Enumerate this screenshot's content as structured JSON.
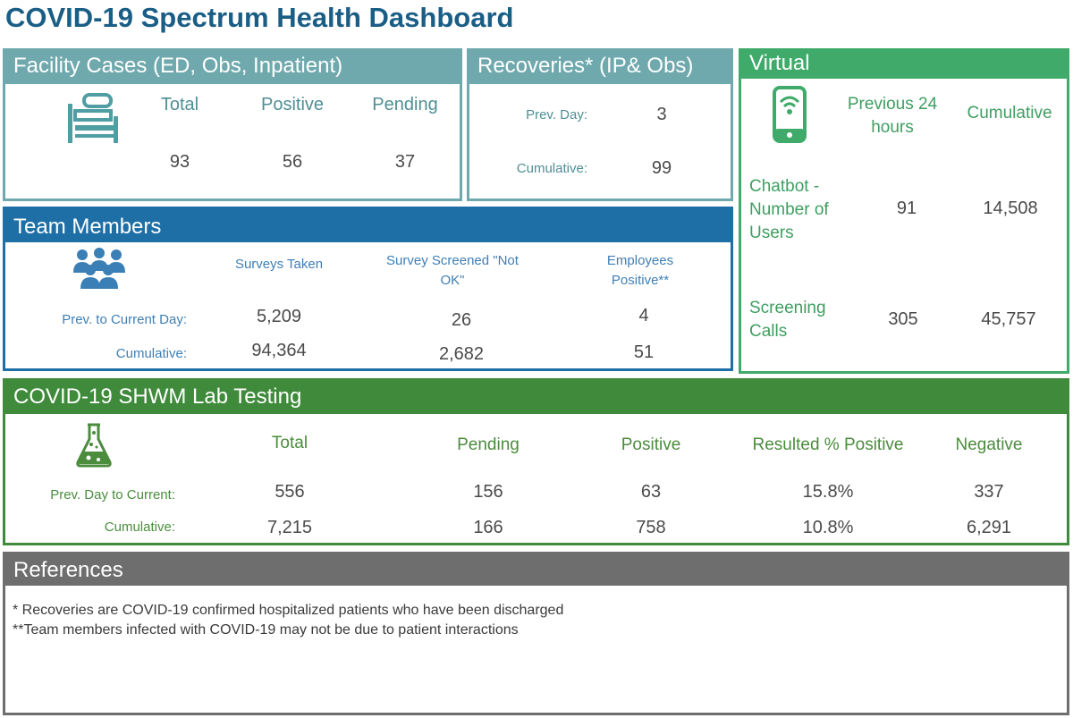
{
  "dashboard": {
    "title": "COVID-19 Spectrum Health Dashboard"
  },
  "facility": {
    "heading": "Facility Cases (ED, Obs, Inpatient)",
    "icon": "hospital-bed-icon",
    "columns": [
      "Total",
      "Positive",
      "Pending"
    ],
    "values": [
      "93",
      "56",
      "37"
    ]
  },
  "recoveries": {
    "heading": "Recoveries* (IP& Obs)",
    "rows": [
      {
        "label": "Prev. Day:",
        "value": "3"
      },
      {
        "label": "Cumulative:",
        "value": "99"
      }
    ]
  },
  "virtual": {
    "heading": "Virtual",
    "icon": "smartphone-signal-icon",
    "col_prev": "Previous 24 hours",
    "col_cumulative": "Cumulative",
    "rows": [
      {
        "label": "Chatbot - Number of Users",
        "prev": "91",
        "cumulative": "14,508"
      },
      {
        "label": "Screening Calls",
        "prev": "305",
        "cumulative": "45,757"
      }
    ]
  },
  "team": {
    "heading": "Team Members",
    "icon": "people-group-icon",
    "columns": [
      "Surveys Taken",
      "Survey Screened \"Not OK\"",
      "Employees Positive**"
    ],
    "rows": [
      {
        "label": "Prev. to Current Day:",
        "values": [
          "5,209",
          "26",
          "4"
        ]
      },
      {
        "label": "Cumulative:",
        "values": [
          "94,364",
          "2,682",
          "51"
        ]
      }
    ]
  },
  "lab": {
    "heading": "COVID-19 SHWM Lab Testing",
    "icon": "lab-flask-icon",
    "columns": [
      "Total",
      "Pending",
      "Positive",
      "Resulted % Positive",
      "Negative"
    ],
    "rows": [
      {
        "label": "Prev. Day to Current:",
        "values": [
          "556",
          "156",
          "63",
          "15.8%",
          "337"
        ]
      },
      {
        "label": "Cumulative:",
        "values": [
          "7,215",
          "166",
          "758",
          "10.8%",
          "6,291"
        ]
      }
    ]
  },
  "references": {
    "heading": "References",
    "notes": [
      "*  Recoveries are COVID-19 confirmed hospitalized patients who have been discharged",
      "**Team members infected with COVID-19 may not be due to patient interactions"
    ]
  },
  "colors": {
    "title": "#1a5e86",
    "facility": "#6fa9ad",
    "virtual": "#3faa6a",
    "team": "#1f6fa7",
    "lab": "#3f8a3b",
    "references": "#6e6e6e"
  }
}
